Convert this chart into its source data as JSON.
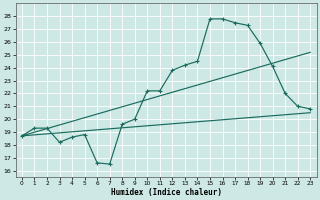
{
  "bg_color": "#cde8e5",
  "grid_color": "#b0d4d0",
  "line_color": "#1a6b5e",
  "xlabel": "Humidex (Indice chaleur)",
  "xlim": [
    -0.5,
    23.5
  ],
  "ylim": [
    15.5,
    29
  ],
  "yticks": [
    16,
    17,
    18,
    19,
    20,
    21,
    22,
    23,
    24,
    25,
    26,
    27,
    28
  ],
  "xticks": [
    0,
    1,
    2,
    3,
    4,
    5,
    6,
    7,
    8,
    9,
    10,
    11,
    12,
    13,
    14,
    15,
    16,
    17,
    18,
    19,
    20,
    21,
    22,
    23
  ],
  "line1_x": [
    0,
    1,
    2,
    3,
    4,
    5,
    6,
    7,
    8,
    9,
    10,
    11,
    12,
    13,
    14,
    15,
    16,
    17,
    18,
    19,
    20,
    21,
    22,
    23
  ],
  "line1_y": [
    18.7,
    19.3,
    19.3,
    18.2,
    18.6,
    18.8,
    16.6,
    16.5,
    19.6,
    20.0,
    22.2,
    22.2,
    23.8,
    24.2,
    24.5,
    27.8,
    27.8,
    27.5,
    27.3,
    25.9,
    24.1,
    22.0,
    21.0,
    20.8
  ],
  "line2_x": [
    0,
    23
  ],
  "line2_y": [
    18.7,
    25.2
  ],
  "line3_x": [
    0,
    23
  ],
  "line3_y": [
    18.7,
    20.5
  ],
  "marker_x": [
    0,
    1,
    2,
    3,
    4,
    5,
    6,
    7,
    8,
    9,
    10,
    11,
    12,
    13,
    14,
    15,
    16,
    17,
    18,
    19,
    20,
    21,
    22,
    23
  ],
  "marker_y": [
    18.7,
    19.3,
    19.3,
    18.2,
    18.6,
    18.8,
    16.6,
    16.5,
    19.6,
    20.0,
    22.2,
    22.2,
    23.8,
    24.2,
    24.5,
    27.8,
    27.8,
    27.5,
    27.3,
    25.9,
    24.1,
    22.0,
    21.0,
    20.8
  ]
}
